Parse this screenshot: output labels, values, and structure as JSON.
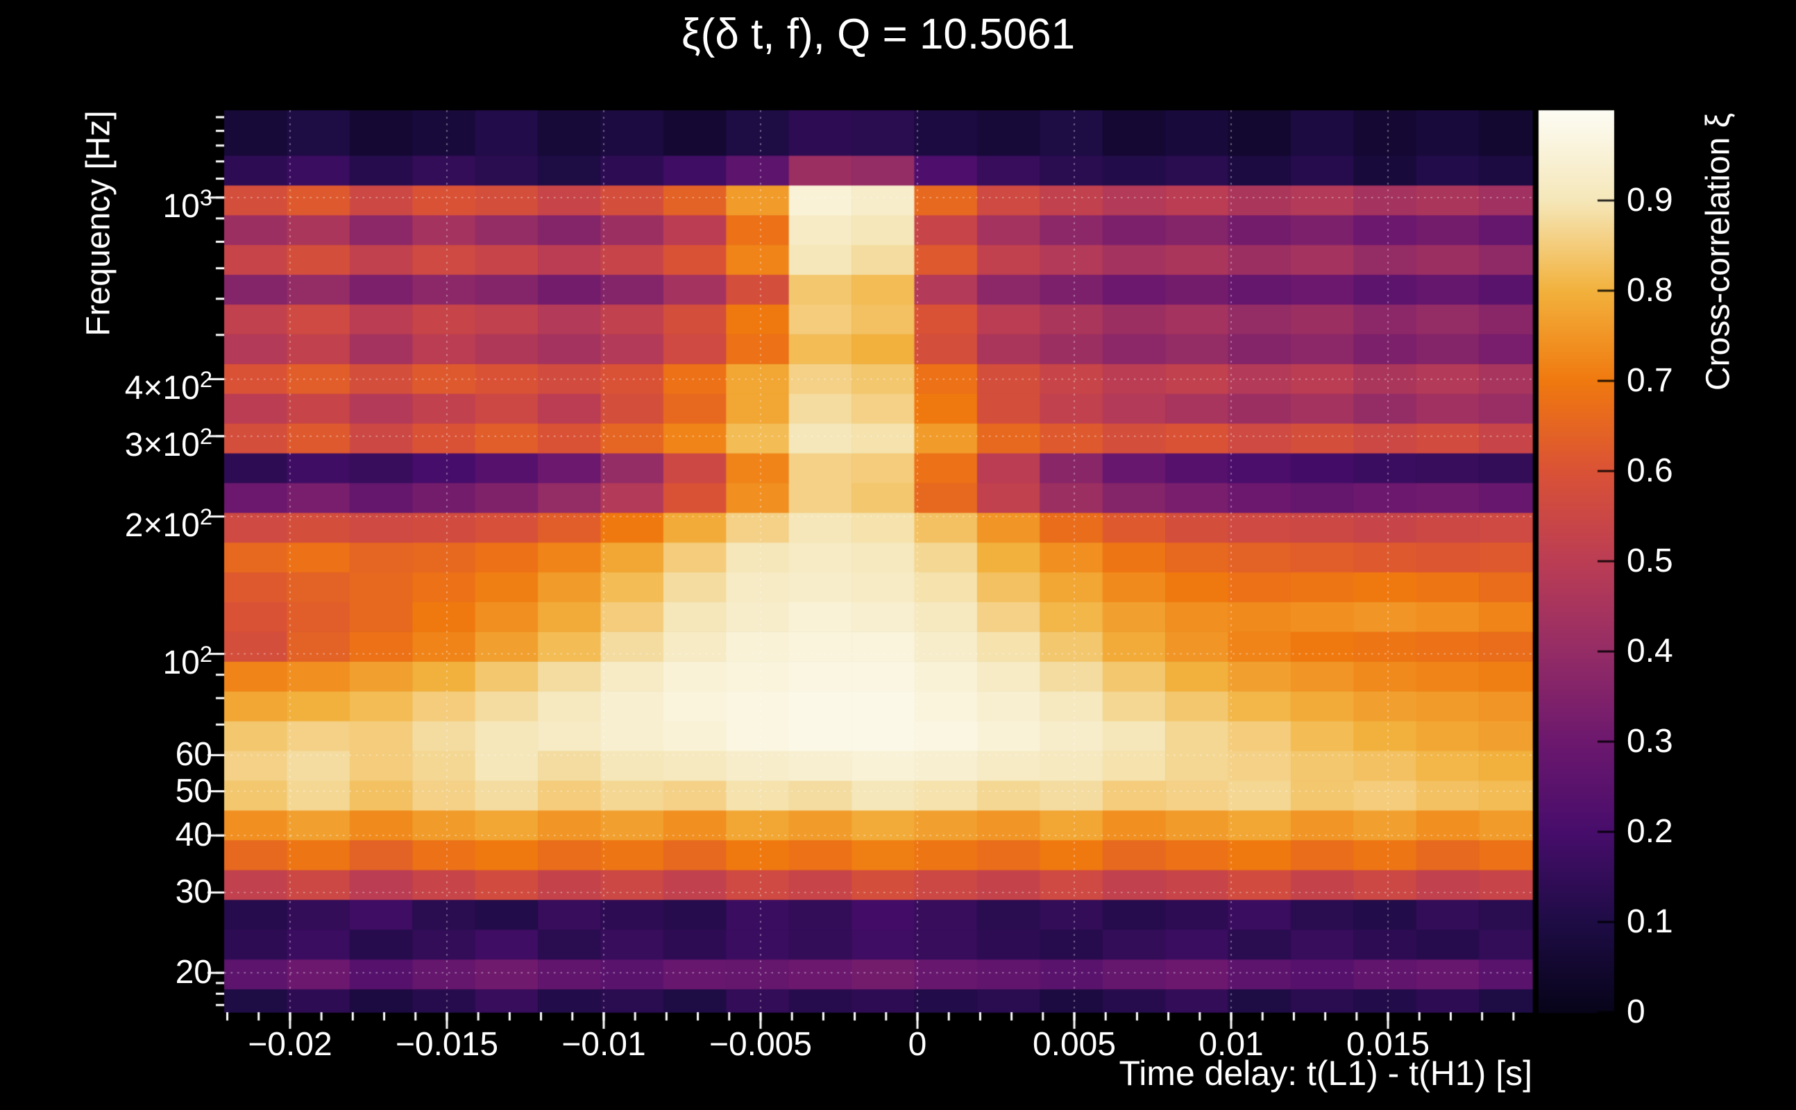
{
  "figure": {
    "bg": "#000000",
    "text_color": "#ffffff"
  },
  "title": "ξ(δ t, f), Q = 10.5061",
  "axes": {
    "x": {
      "label": "Time delay: t(L1) - t(H1) [s]",
      "min": -0.0221,
      "max": 0.0196,
      "minor_step": 0.001,
      "major_ticks": [
        {
          "v": -0.02,
          "text": "−0.02"
        },
        {
          "v": -0.015,
          "text": "−0.015"
        },
        {
          "v": -0.01,
          "text": "−0.01"
        },
        {
          "v": -0.005,
          "text": "−0.005"
        },
        {
          "v": 0,
          "text": "0"
        },
        {
          "v": 0.005,
          "text": "0.005"
        },
        {
          "v": 0.01,
          "text": "0.01"
        },
        {
          "v": 0.015,
          "text": "0.015"
        }
      ]
    },
    "y": {
      "label": "Frequency [Hz]",
      "scale": "log",
      "min": 16.4,
      "max": 1553,
      "major_ticks": [
        {
          "v": 20,
          "text": "20"
        },
        {
          "v": 30,
          "text": "30"
        },
        {
          "v": 40,
          "text": "40"
        },
        {
          "v": 50,
          "text": "50"
        },
        {
          "v": 60,
          "text": "60"
        },
        {
          "v": 100,
          "text": "10",
          "sup": "2"
        },
        {
          "v": 200,
          "text": "2×10",
          "sup": "2"
        },
        {
          "v": 300,
          "text": "3×10",
          "sup": "2"
        },
        {
          "v": 400,
          "text": "4×10",
          "sup": "2"
        },
        {
          "v": 1000,
          "text": "10",
          "sup": "3"
        }
      ],
      "minor_ticks": [
        17,
        18,
        19,
        20,
        30,
        40,
        50,
        60,
        70,
        80,
        90,
        100,
        200,
        300,
        400,
        500,
        600,
        700,
        800,
        900,
        1000,
        1100,
        1200,
        1300,
        1400,
        1500
      ]
    }
  },
  "colorbar": {
    "label": "Cross-correlation ξ",
    "min": 0,
    "max": 1,
    "ticks": [
      {
        "v": 0,
        "text": "0"
      },
      {
        "v": 0.1,
        "text": "0.1"
      },
      {
        "v": 0.2,
        "text": "0.2"
      },
      {
        "v": 0.3,
        "text": "0.3"
      },
      {
        "v": 0.4,
        "text": "0.4"
      },
      {
        "v": 0.5,
        "text": "0.5"
      },
      {
        "v": 0.6,
        "text": "0.6"
      },
      {
        "v": 0.7,
        "text": "0.7"
      },
      {
        "v": 0.8,
        "text": "0.8"
      },
      {
        "v": 0.9,
        "text": "0.9"
      }
    ],
    "stops": [
      "#070419",
      "#1e0c45",
      "#470d6b",
      "#6c186e",
      "#942c66",
      "#bb3d54",
      "#da5236",
      "#f0790f",
      "#f2b13c",
      "#f5e7b9",
      "#fdfcf4"
    ]
  },
  "chart_data": {
    "type": "heatmap",
    "title": "ξ(δ t, f), Q = 10.5061",
    "Q": 10.5061,
    "xlabel": "Time delay: t(L1) - t(H1) [s]",
    "ylabel": "Frequency [Hz]",
    "zlabel": "Cross-correlation ξ",
    "xlim": [
      -0.0221,
      0.0196
    ],
    "ylim_hz": [
      16.4,
      1553
    ],
    "y_scale": "log",
    "zlim": [
      0,
      1
    ],
    "grid": "dotted-white",
    "x_centers": [
      -0.0211,
      -0.0191,
      -0.0171,
      -0.0151,
      -0.0131,
      -0.0111,
      -0.0091,
      -0.0071,
      -0.0051,
      -0.0031,
      -0.0011,
      0.0009,
      0.0029,
      0.0049,
      0.0069,
      0.0089,
      0.0109,
      0.0129,
      0.0149,
      0.0169,
      0.0189
    ],
    "freq_centers_hz": [
      17.1,
      19.9,
      23.1,
      26.9,
      31.2,
      36.3,
      42.2,
      49.0,
      57.0,
      66.2,
      76.9,
      89.4,
      103.9,
      120.7,
      140.3,
      163.0,
      189.4,
      220.1,
      255.8,
      297.2,
      345.4,
      401.3,
      466.4,
      541.9,
      629.7,
      731.7,
      850.3,
      988.0,
      1148.2,
      1334.3
    ],
    "values": [
      [
        0.1,
        0.14,
        0.09,
        0.12,
        0.16,
        0.11,
        0.13,
        0.1,
        0.15,
        0.12,
        0.14,
        0.11,
        0.13,
        0.09,
        0.12,
        0.15,
        0.1,
        0.13,
        0.11,
        0.14,
        0.1
      ],
      [
        0.26,
        0.3,
        0.24,
        0.28,
        0.31,
        0.27,
        0.25,
        0.29,
        0.28,
        0.3,
        0.32,
        0.29,
        0.27,
        0.25,
        0.28,
        0.3,
        0.26,
        0.24,
        0.27,
        0.29,
        0.25
      ],
      [
        0.14,
        0.17,
        0.12,
        0.15,
        0.18,
        0.13,
        0.16,
        0.14,
        0.17,
        0.15,
        0.18,
        0.16,
        0.14,
        0.12,
        0.15,
        0.17,
        0.13,
        0.16,
        0.14,
        0.12,
        0.15
      ],
      [
        0.12,
        0.15,
        0.18,
        0.13,
        0.11,
        0.16,
        0.14,
        0.12,
        0.17,
        0.15,
        0.19,
        0.16,
        0.13,
        0.15,
        0.12,
        0.14,
        0.17,
        0.13,
        0.11,
        0.15,
        0.13
      ],
      [
        0.52,
        0.55,
        0.5,
        0.54,
        0.57,
        0.53,
        0.55,
        0.52,
        0.56,
        0.54,
        0.58,
        0.55,
        0.53,
        0.56,
        0.52,
        0.54,
        0.57,
        0.53,
        0.55,
        0.52,
        0.54
      ],
      [
        0.66,
        0.69,
        0.64,
        0.68,
        0.7,
        0.67,
        0.69,
        0.66,
        0.7,
        0.68,
        0.71,
        0.69,
        0.67,
        0.7,
        0.66,
        0.68,
        0.7,
        0.67,
        0.69,
        0.66,
        0.68
      ],
      [
        0.74,
        0.77,
        0.73,
        0.76,
        0.78,
        0.75,
        0.77,
        0.74,
        0.78,
        0.76,
        0.79,
        0.77,
        0.75,
        0.78,
        0.74,
        0.76,
        0.78,
        0.75,
        0.77,
        0.74,
        0.76
      ],
      [
        0.84,
        0.87,
        0.83,
        0.86,
        0.88,
        0.85,
        0.87,
        0.86,
        0.89,
        0.88,
        0.9,
        0.89,
        0.87,
        0.88,
        0.85,
        0.86,
        0.87,
        0.84,
        0.85,
        0.83,
        0.82
      ],
      [
        0.86,
        0.88,
        0.85,
        0.87,
        0.9,
        0.88,
        0.9,
        0.91,
        0.93,
        0.94,
        0.95,
        0.94,
        0.92,
        0.91,
        0.89,
        0.87,
        0.86,
        0.84,
        0.83,
        0.81,
        0.8
      ],
      [
        0.84,
        0.86,
        0.85,
        0.88,
        0.9,
        0.92,
        0.94,
        0.95,
        0.97,
        0.98,
        0.98,
        0.97,
        0.95,
        0.93,
        0.9,
        0.87,
        0.85,
        0.82,
        0.8,
        0.78,
        0.77
      ],
      [
        0.78,
        0.8,
        0.82,
        0.85,
        0.88,
        0.91,
        0.94,
        0.96,
        0.97,
        0.98,
        0.98,
        0.96,
        0.94,
        0.91,
        0.87,
        0.84,
        0.81,
        0.79,
        0.77,
        0.76,
        0.75
      ],
      [
        0.72,
        0.74,
        0.77,
        0.8,
        0.84,
        0.88,
        0.92,
        0.95,
        0.96,
        0.97,
        0.97,
        0.95,
        0.92,
        0.88,
        0.84,
        0.8,
        0.77,
        0.75,
        0.73,
        0.72,
        0.71
      ],
      [
        0.58,
        0.64,
        0.68,
        0.72,
        0.77,
        0.82,
        0.88,
        0.92,
        0.95,
        0.96,
        0.96,
        0.93,
        0.89,
        0.84,
        0.79,
        0.75,
        0.72,
        0.7,
        0.69,
        0.68,
        0.67
      ],
      [
        0.6,
        0.63,
        0.66,
        0.7,
        0.74,
        0.79,
        0.85,
        0.9,
        0.93,
        0.95,
        0.94,
        0.91,
        0.86,
        0.81,
        0.77,
        0.74,
        0.73,
        0.74,
        0.75,
        0.74,
        0.72
      ],
      [
        0.62,
        0.64,
        0.66,
        0.68,
        0.71,
        0.76,
        0.82,
        0.88,
        0.92,
        0.93,
        0.92,
        0.89,
        0.83,
        0.78,
        0.73,
        0.7,
        0.68,
        0.69,
        0.7,
        0.69,
        0.67
      ],
      [
        0.66,
        0.68,
        0.65,
        0.66,
        0.68,
        0.72,
        0.78,
        0.85,
        0.9,
        0.92,
        0.91,
        0.87,
        0.8,
        0.74,
        0.69,
        0.66,
        0.64,
        0.63,
        0.62,
        0.61,
        0.62
      ],
      [
        0.56,
        0.58,
        0.56,
        0.57,
        0.59,
        0.63,
        0.7,
        0.79,
        0.86,
        0.9,
        0.89,
        0.83,
        0.75,
        0.67,
        0.62,
        0.58,
        0.56,
        0.55,
        0.54,
        0.55,
        0.56
      ],
      [
        0.3,
        0.33,
        0.28,
        0.32,
        0.35,
        0.4,
        0.48,
        0.6,
        0.74,
        0.86,
        0.84,
        0.66,
        0.52,
        0.42,
        0.36,
        0.33,
        0.3,
        0.28,
        0.3,
        0.31,
        0.29
      ],
      [
        0.14,
        0.18,
        0.16,
        0.2,
        0.24,
        0.3,
        0.4,
        0.55,
        0.72,
        0.86,
        0.85,
        0.68,
        0.5,
        0.37,
        0.29,
        0.24,
        0.21,
        0.19,
        0.17,
        0.16,
        0.15
      ],
      [
        0.58,
        0.62,
        0.55,
        0.6,
        0.63,
        0.6,
        0.65,
        0.72,
        0.82,
        0.9,
        0.89,
        0.76,
        0.66,
        0.62,
        0.58,
        0.6,
        0.56,
        0.58,
        0.55,
        0.57,
        0.54
      ],
      [
        0.5,
        0.54,
        0.48,
        0.52,
        0.55,
        0.5,
        0.58,
        0.66,
        0.78,
        0.88,
        0.86,
        0.7,
        0.58,
        0.52,
        0.48,
        0.45,
        0.42,
        0.44,
        0.4,
        0.43,
        0.41
      ],
      [
        0.6,
        0.63,
        0.58,
        0.62,
        0.6,
        0.57,
        0.6,
        0.68,
        0.78,
        0.86,
        0.84,
        0.68,
        0.58,
        0.54,
        0.5,
        0.52,
        0.48,
        0.5,
        0.46,
        0.48,
        0.45
      ],
      [
        0.48,
        0.52,
        0.44,
        0.5,
        0.47,
        0.44,
        0.48,
        0.56,
        0.68,
        0.82,
        0.8,
        0.58,
        0.46,
        0.42,
        0.38,
        0.4,
        0.36,
        0.38,
        0.34,
        0.36,
        0.33
      ],
      [
        0.52,
        0.56,
        0.5,
        0.54,
        0.52,
        0.48,
        0.52,
        0.58,
        0.7,
        0.85,
        0.83,
        0.6,
        0.5,
        0.46,
        0.42,
        0.44,
        0.4,
        0.42,
        0.38,
        0.4,
        0.37
      ],
      [
        0.36,
        0.4,
        0.34,
        0.38,
        0.36,
        0.32,
        0.36,
        0.44,
        0.58,
        0.84,
        0.82,
        0.48,
        0.38,
        0.34,
        0.3,
        0.32,
        0.28,
        0.3,
        0.26,
        0.28,
        0.25
      ],
      [
        0.54,
        0.58,
        0.52,
        0.56,
        0.54,
        0.5,
        0.54,
        0.6,
        0.72,
        0.9,
        0.88,
        0.62,
        0.52,
        0.48,
        0.44,
        0.46,
        0.42,
        0.44,
        0.4,
        0.42,
        0.39
      ],
      [
        0.42,
        0.46,
        0.38,
        0.44,
        0.4,
        0.36,
        0.42,
        0.5,
        0.68,
        0.92,
        0.9,
        0.54,
        0.44,
        0.38,
        0.34,
        0.36,
        0.32,
        0.34,
        0.3,
        0.32,
        0.28
      ],
      [
        0.58,
        0.62,
        0.55,
        0.6,
        0.58,
        0.54,
        0.58,
        0.64,
        0.76,
        0.95,
        0.93,
        0.66,
        0.56,
        0.52,
        0.48,
        0.5,
        0.46,
        0.48,
        0.44,
        0.46,
        0.43
      ],
      [
        0.14,
        0.17,
        0.12,
        0.15,
        0.13,
        0.1,
        0.14,
        0.18,
        0.26,
        0.42,
        0.4,
        0.22,
        0.16,
        0.13,
        0.11,
        0.13,
        0.09,
        0.12,
        0.08,
        0.11,
        0.09
      ],
      [
        0.07,
        0.1,
        0.06,
        0.08,
        0.11,
        0.07,
        0.09,
        0.06,
        0.1,
        0.14,
        0.13,
        0.09,
        0.07,
        0.1,
        0.06,
        0.08,
        0.05,
        0.09,
        0.06,
        0.08,
        0.05
      ]
    ]
  }
}
